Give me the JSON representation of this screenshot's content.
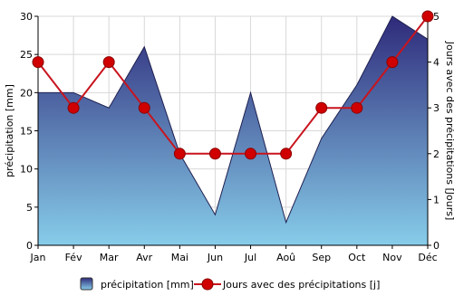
{
  "chart_data": {
    "type": "area+line",
    "categories": [
      "Jan",
      "Fév",
      "Mar",
      "Avr",
      "Mai",
      "Jun",
      "Jul",
      "Aoû",
      "Sep",
      "Oct",
      "Nov",
      "Déc"
    ],
    "series": [
      {
        "name": "précipitation [mm]",
        "type": "area",
        "axis": "left",
        "values": [
          20,
          20,
          18,
          26,
          12,
          4,
          20,
          3,
          14,
          21,
          30,
          27
        ]
      },
      {
        "name": "Jours avec des précipitations [j]",
        "type": "line",
        "axis": "right",
        "values": [
          4,
          3,
          4,
          3,
          2,
          2,
          2,
          2,
          3,
          3,
          4,
          5
        ]
      }
    ],
    "ylabel_left": "précipitation [mm]",
    "ylabel_right": "Jours avec des précipitations [Jours]",
    "ylim_left": [
      0,
      30
    ],
    "yticks_left": [
      0,
      5,
      10,
      15,
      20,
      25,
      30
    ],
    "ylim_right": [
      0,
      5
    ],
    "yticks_right": [
      0,
      1,
      2,
      3,
      4,
      5
    ],
    "grid": true,
    "legend_position": "bottom",
    "colors": {
      "area_top": "#2e2a7a",
      "area_bottom": "#87cdea",
      "area_stroke": "#1e2050",
      "line": "#c8141e",
      "marker": "#d00000",
      "grid": "#d8d8d8"
    }
  }
}
